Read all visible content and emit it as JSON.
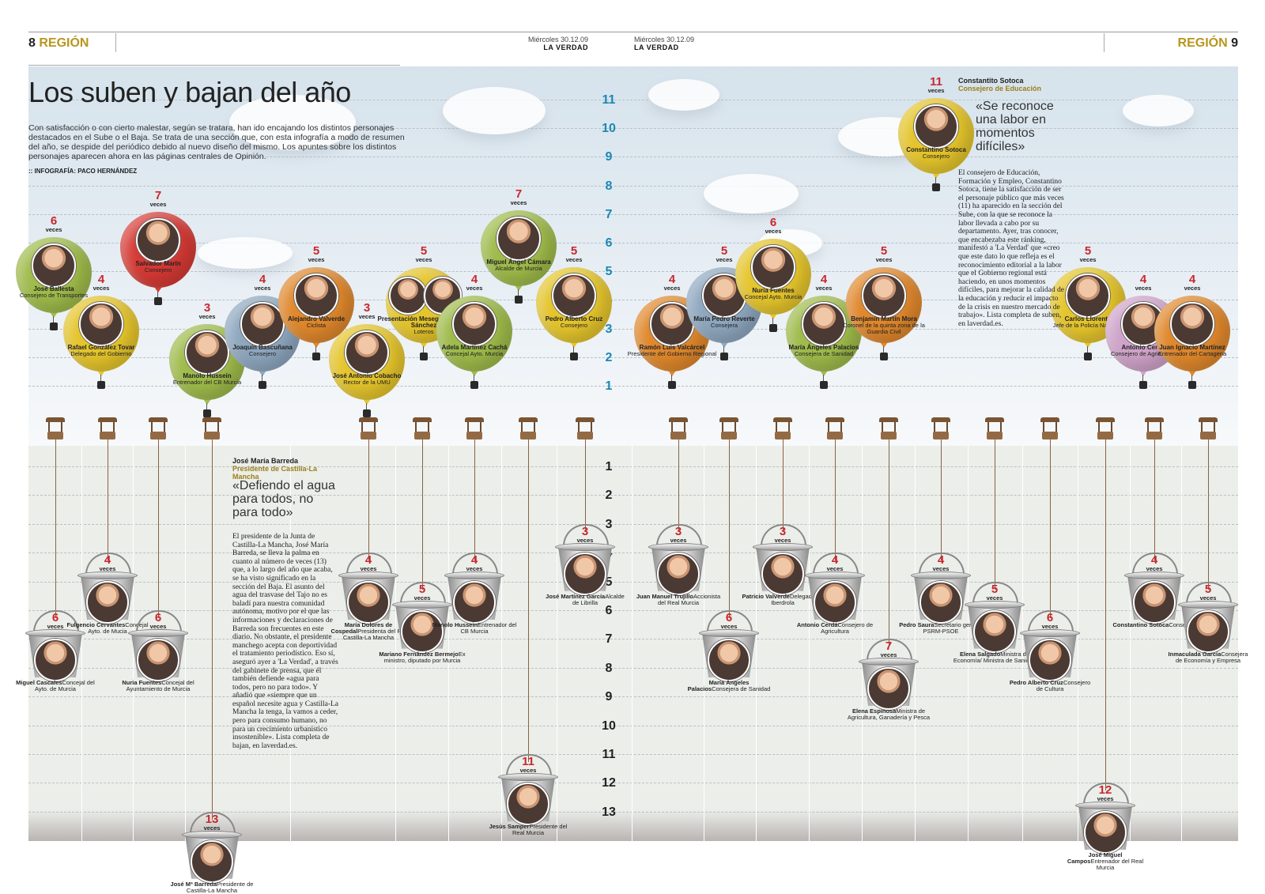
{
  "header": {
    "left_page": "8",
    "left_section": "REGIÓN",
    "right_section": "REGIÓN",
    "right_page": "9",
    "date_left": "Miércoles 30.12.09",
    "paper_left": "LA VERDAD",
    "date_right": "Miércoles 30.12.09",
    "paper_right": "LA VERDAD"
  },
  "headline": "Los suben y bajan del año",
  "intro": "Con satisfacción o con cierto malestar, según se tratara, han ido encajando los distintos personajes destacados en el Sube o el Baja. Se trata de una sección que, con esta infografía a modo de resumen del año, se despide del periódico debido al nuevo diseño del mismo. Los apuntes sobre los distintos personajes aparecen ahora en las páginas centrales de Opinión.",
  "credit": ":: INFOGRAFÍA: PACO HERNÁNDEZ",
  "veces_label": "veces",
  "colors": {
    "green": "#9fbb4a",
    "orange": "#e0882c",
    "yellow": "#e5c52c",
    "red": "#d63a35",
    "blue": "#8ea7bf",
    "pink": "#cfa3c9",
    "count_red": "#c8282d",
    "scale_up": "#1b88b3"
  },
  "scale": {
    "up_ticks": [
      "11",
      "10",
      "9",
      "8",
      "7",
      "6",
      "5",
      "4",
      "3",
      "2",
      "1"
    ],
    "down_ticks": [
      "1",
      "2",
      "3",
      "4",
      "5",
      "6",
      "7",
      "8",
      "9",
      "10",
      "11",
      "12",
      "13"
    ]
  },
  "balloons": [
    {
      "count": "6",
      "name": "José Ballesta",
      "role": "Consejero de Transportes",
      "color": "green",
      "icon": "portrait-icon"
    },
    {
      "count": "4",
      "name": "Rafael González Tovar",
      "role": "Delegado del Gobierno",
      "color": "yellow",
      "icon": "portrait-icon"
    },
    {
      "count": "7",
      "name": "Salvador Marín",
      "role": "Consejero",
      "color": "red",
      "icon": "portrait-icon"
    },
    {
      "count": "3",
      "name": "Manolo Hussein",
      "role": "Entrenador del CB Murcia",
      "color": "green",
      "icon": "portrait-icon"
    },
    {
      "count": "4",
      "name": "Joaquín Bascuñana",
      "role": "Consejero",
      "color": "blue",
      "icon": "portrait-icon"
    },
    {
      "count": "5",
      "name": "Alejandro Valverde",
      "role": "Ciclista",
      "color": "orange",
      "icon": "portrait-icon"
    },
    {
      "count": "3",
      "name": "José Antonio Cobacho",
      "role": "Rector de la UMU",
      "color": "yellow",
      "icon": "portrait-icon"
    },
    {
      "count": "5",
      "name": "Presentación Meseguer y José Sánchez",
      "role": "Loteros",
      "color": "yellow",
      "icon": "portrait-icon"
    },
    {
      "count": "4",
      "name": "Adela Martínez Cachá",
      "role": "Concejal Ayto. Murcia",
      "color": "green",
      "icon": "portrait-icon"
    },
    {
      "count": "7",
      "name": "Miguel Ángel Cámara",
      "role": "Alcalde de Murcia",
      "color": "green",
      "icon": "portrait-icon"
    },
    {
      "count": "5",
      "name": "Pedro Alberto Cruz",
      "role": "Consejero",
      "color": "yellow",
      "icon": "portrait-icon"
    },
    {
      "count": "4",
      "name": "Ramón Luis Valcárcel",
      "role": "Presidente del Gobierno Regional",
      "color": "orange",
      "icon": "portrait-icon"
    },
    {
      "count": "5",
      "name": "María Pedro Reverte",
      "role": "Consejera",
      "color": "blue",
      "icon": "portrait-icon"
    },
    {
      "count": "6",
      "name": "Nuria Fuentes",
      "role": "Concejal Ayto. Murcia",
      "color": "yellow",
      "icon": "portrait-icon"
    },
    {
      "count": "4",
      "name": "María Ángeles Palacios",
      "role": "Consejera de Sanidad",
      "color": "green",
      "icon": "portrait-icon"
    },
    {
      "count": "5",
      "name": "Benjamín Martín Mora",
      "role": "Coronel de la quinta zona de la Guardia Civil",
      "color": "orange",
      "icon": "portrait-icon"
    },
    {
      "count": "11",
      "name": "Constantino Sotoca",
      "role": "Consejero",
      "color": "yellow",
      "icon": "portrait-icon"
    },
    {
      "count": "5",
      "name": "Carlos Llorente",
      "role": "Jefe de la Policía Nacional",
      "color": "yellow",
      "icon": "portrait-icon"
    },
    {
      "count": "4",
      "name": "Antonio Cerdá",
      "role": "Consejero de Agricultura",
      "color": "pink",
      "icon": "portrait-icon"
    },
    {
      "count": "4",
      "name": "Juan Ignacio Martínez",
      "role": "Entrenador del Cartagena",
      "color": "orange",
      "icon": "portrait-icon"
    }
  ],
  "buckets": [
    {
      "count": "6",
      "name": "Miguel Cascales",
      "role": "Concejal del Ayto. de Murcia"
    },
    {
      "count": "4",
      "name": "Fulgencio Cervantes",
      "role": "Concejal Ayto. de Mucia"
    },
    {
      "count": "6",
      "name": "Nuria Fuentes",
      "role": "Concejal del Ayuntamiento de Murcia"
    },
    {
      "count": "13",
      "name": "José Mª Barreda",
      "role": "Presidente de Castilla-La Mancha"
    },
    {
      "count": "4",
      "name": "María Dolores de Cospedal",
      "role": "Presidenta del PP, Castilla-La Mancha"
    },
    {
      "count": "5",
      "name": "Mariano Fernández Bermejo",
      "role": "Ex ministro, diputado por Murcia"
    },
    {
      "count": "4",
      "name": "Manolo Hussein",
      "role": "Entrenador del CB Murcia"
    },
    {
      "count": "11",
      "name": "Jesús Samper",
      "role": "Presidente del Real Murcia"
    },
    {
      "count": "3",
      "name": "José Martínez García",
      "role": "Alcalde de Librilla"
    },
    {
      "count": "3",
      "name": "Juan Manuel Trujillo",
      "role": "Accionista del Real Murcia"
    },
    {
      "count": "6",
      "name": "María Ángeles Palacios",
      "role": "Consejera de Sanidad"
    },
    {
      "count": "3",
      "name": "Patricio Valverde",
      "role": "Delegado de Iberdrola"
    },
    {
      "count": "4",
      "name": "Antonio Cerdá",
      "role": "Consejero de Agricultura"
    },
    {
      "count": "7",
      "name": "Elena Espinosa",
      "role": "Ministra de Agricultura, Ganadería y Pesca"
    },
    {
      "count": "4",
      "name": "Pedro Saura",
      "role": "Secretario general PSRM-PSOE"
    },
    {
      "count": "5",
      "name": "Elena Salgado",
      "role": "Ministra de Economía/ Ministra de Sanidad"
    },
    {
      "count": "6",
      "name": "Pedro Alberto Cruz",
      "role": "Consejero de Cultura"
    },
    {
      "count": "12",
      "name": "José Miguel Campos",
      "role": "Entrenador del Real Murcia"
    },
    {
      "count": "4",
      "name": "Constantino Sotoca",
      "role": "Consejero"
    },
    {
      "count": "5",
      "name": "Inmaculada García",
      "role": "Consejera de Economía y Empresa"
    }
  ],
  "sotoca_box": {
    "name": "Constantito Sotoca",
    "role": "Consejero de Educación",
    "quote": "«Se reconoce una labor en momentos difíciles»",
    "body": "El consejero de Educación, Formación y Empleo, Constantino Sotoca, tiene la satisfacción de ser el personaje público que más veces (11) ha aparecido en la sección del Sube, con la que se reconoce la labor llevada a cabo por su departamento. Ayer, tras conocer, que encabezaba este ránking, manifestó a 'La Verdad' que «creo que este dato lo que refleja es el reconocimiento editorial a la labor que el Gobierno regional está haciendo, en unos momentos difíciles, para mejorar la calidad de la educación y reducir el impacto de la crisis en nuestro mercado de trabajo». Lista completa de suben, en laverdad.es."
  },
  "barreda_box": {
    "name": "José María Barreda",
    "role": "Presidente de Castilla-La Mancha",
    "quote": "«Defiendo el agua para todos, no para todo»",
    "body": "El presidente de la Junta de Castilla-La Mancha, José María Barreda, se lleva la palma en cuanto al número de veces (13) que, a lo largo del año que acaba, se ha visto significado en la sección del Baja. El asunto del agua del trasvase del Tajo no es baladí para nuestra comunidad autónoma, motivo por el que las informaciones y declaraciones de Barreda son frecuentes en este diario. No obstante, el presidente manchego acepta con deportividad el tratamiento periodístico. Eso sí, aseguró ayer a 'La Verdad', a través del gabinete de prensa, que él también defiende «agua para todos, pero no para todo». Y añadió que «siempre que un español necesite agua y Castilla-La Mancha la tenga, la vamos a ceder, pero para consumo humano, no para un crecimiento urbanístico insostenible». Lista completa de bajan, en laverdad.es."
  }
}
